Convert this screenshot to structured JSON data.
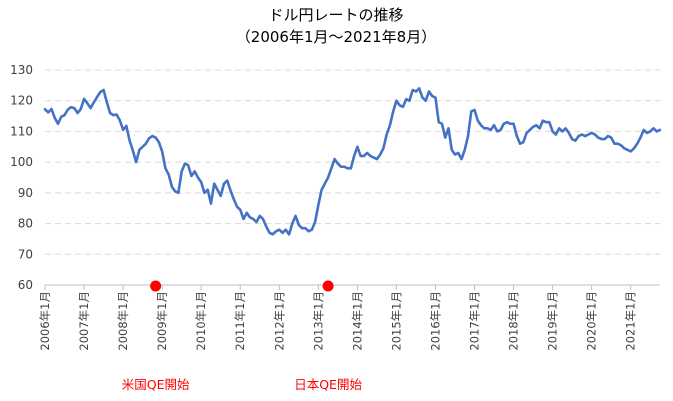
{
  "chart_data": {
    "type": "line",
    "title": "ドル円レートの推移",
    "subtitle": "（2006年1月～2021年8月）",
    "ylim": [
      60,
      130
    ],
    "yticks": [
      60,
      70,
      80,
      90,
      100,
      110,
      120,
      130
    ],
    "grid": true,
    "x_tick_labels": [
      "2006年1月",
      "2007年1月",
      "2008年1月",
      "2009年1月",
      "2010年1月",
      "2011年1月",
      "2012年1月",
      "2013年1月",
      "2014年1月",
      "2015年1月",
      "2016年1月",
      "2017年1月",
      "2018年1月",
      "2019年1月",
      "2020年1月",
      "2021年1月"
    ],
    "line_color": "#4472c4",
    "marker_color": "#ff0000",
    "annotations": [
      {
        "label": "米国QE開始",
        "date": "2008-11"
      },
      {
        "label": "日本QE開始",
        "date": "2013-04"
      }
    ],
    "series": [
      {
        "start": "2006-01",
        "values": [
          117.2,
          116.2,
          117.3,
          114.4,
          112.5,
          114.8,
          115.3,
          117.1,
          117.9,
          117.6,
          116.0,
          117.3,
          120.6,
          119.2,
          117.6,
          119.5,
          121.2,
          122.8,
          123.5,
          119.5,
          116.0,
          115.3,
          115.5,
          113.6,
          110.5,
          111.8,
          107.0,
          103.8,
          100.0,
          104.0,
          105.0,
          106.0,
          107.8,
          108.5,
          108.0,
          106.5,
          103.5,
          98.0,
          96.0,
          92.0,
          90.5,
          90.0,
          97.0,
          99.5,
          99.0,
          95.5,
          97.0,
          95.0,
          93.5,
          90.0,
          91.0,
          86.5,
          93.0,
          91.0,
          89.0,
          93.0,
          94.0,
          90.8,
          88.0,
          85.5,
          84.5,
          81.5,
          83.5,
          82.0,
          81.5,
          80.5,
          82.5,
          81.5,
          79.0,
          77.0,
          76.5,
          77.5,
          78.0,
          77.0,
          78.0,
          76.5,
          80.0,
          82.5,
          79.5,
          78.5,
          78.5,
          77.5,
          78.0,
          80.5,
          86.0,
          91.0,
          93.0,
          95.0,
          98.0,
          101.0,
          99.5,
          98.5,
          98.5,
          98.0,
          98.0,
          102.0,
          105.0,
          102.0,
          102.0,
          103.0,
          102.0,
          101.5,
          101.0,
          102.5,
          104.5,
          109.0,
          112.0,
          116.5,
          120.0,
          118.5,
          118.0,
          120.5,
          120.0,
          123.5,
          123.0,
          124.0,
          121.0,
          120.0,
          123.0,
          121.5,
          121.0,
          113.0,
          112.5,
          108.0,
          111.0,
          104.0,
          102.5,
          103.0,
          101.0,
          104.0,
          108.5,
          116.5,
          117.0,
          113.5,
          112.0,
          111.0,
          111.0,
          110.5,
          112.0,
          110.0,
          110.5,
          112.5,
          113.0,
          112.5,
          112.5,
          108.5,
          106.0,
          106.5,
          109.5,
          110.5,
          111.5,
          112.0,
          111.0,
          113.5,
          113.0,
          113.0,
          110.0,
          109.0,
          111.0,
          110.0,
          111.0,
          109.5,
          107.5,
          107.0,
          108.5,
          109.0,
          108.5,
          109.0,
          109.5,
          109.0,
          108.0,
          107.5,
          107.5,
          108.5,
          108.0,
          106.0,
          106.0,
          105.5,
          104.5,
          104.0,
          103.5,
          104.5,
          106.0,
          108.0,
          110.5,
          109.5,
          110.0,
          111.0,
          110.0,
          110.5
        ]
      }
    ]
  }
}
